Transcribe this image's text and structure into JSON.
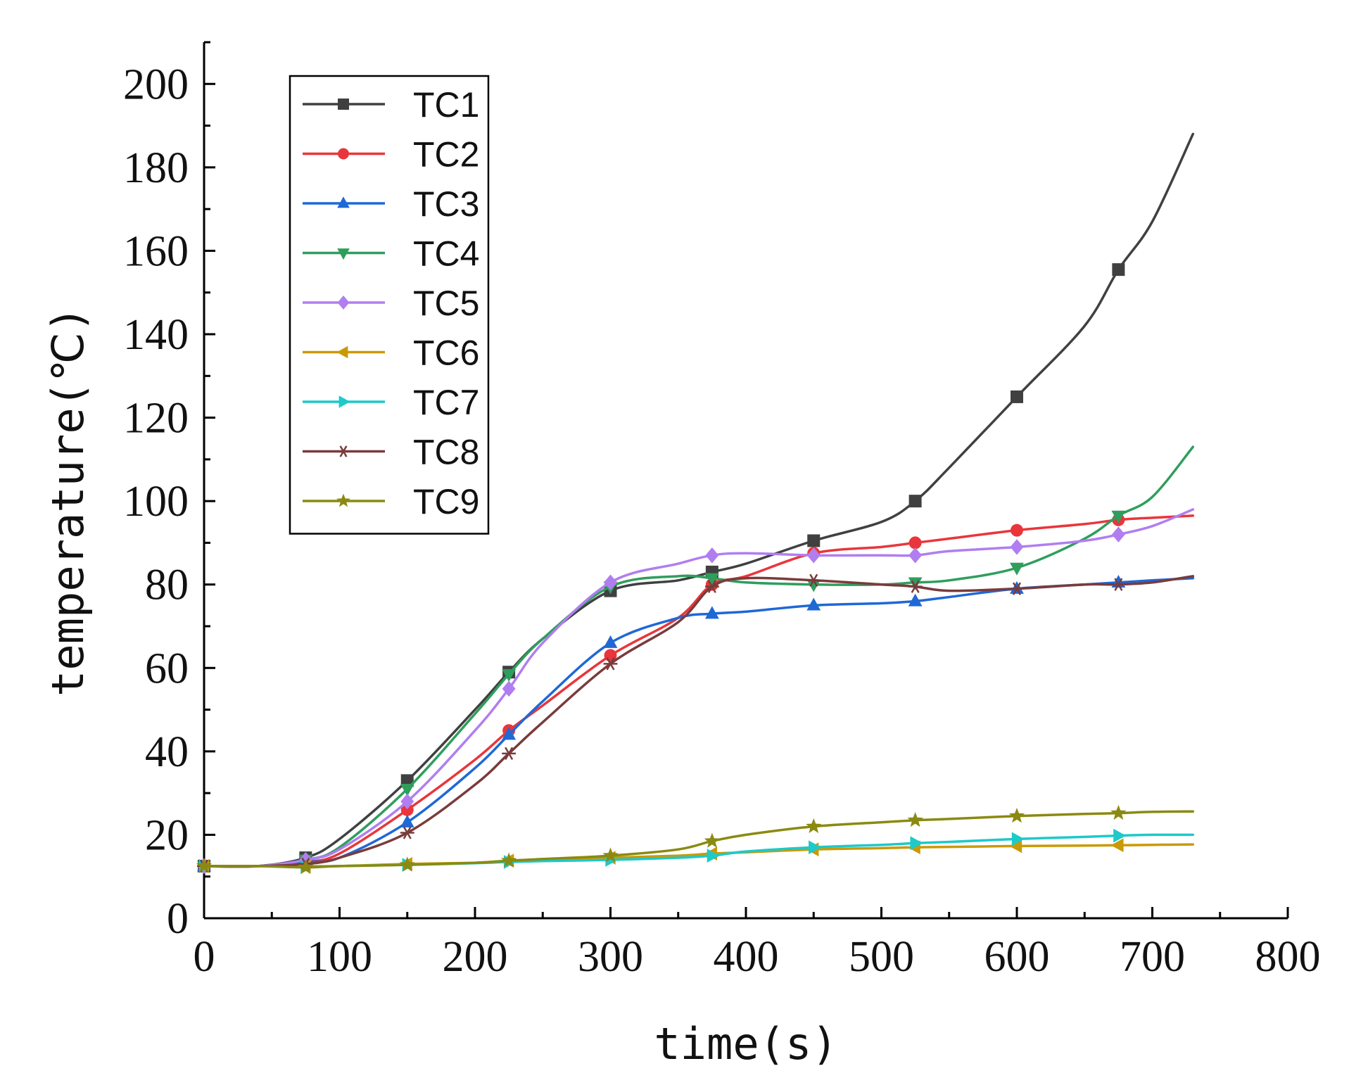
{
  "chart_data": {
    "type": "line",
    "title": "",
    "xlabel": "time(s)",
    "ylabel": "temperature(℃)",
    "xlim": [
      0,
      800
    ],
    "ylim": [
      0,
      210
    ],
    "xticks": [
      0,
      100,
      200,
      300,
      400,
      500,
      600,
      700,
      800
    ],
    "yticks": [
      0,
      20,
      40,
      60,
      80,
      100,
      120,
      140,
      160,
      180,
      200
    ],
    "grid": false,
    "legend_position": "top-left",
    "series": [
      {
        "name": "TC1",
        "color": "#404040",
        "marker": "square",
        "x": [
          0,
          40,
          75,
          100,
          150,
          200,
          225,
          250,
          300,
          350,
          375,
          400,
          450,
          500,
          525,
          550,
          600,
          650,
          675,
          700,
          730
        ],
        "y": [
          12.5,
          12.5,
          14.5,
          19,
          33,
          50,
          59,
          67,
          78.5,
          81,
          83,
          85,
          90.5,
          95,
          100,
          108,
          125,
          142,
          155.5,
          167,
          188
        ]
      },
      {
        "name": "TC2",
        "color": "#e8363b",
        "marker": "circle",
        "x": [
          0,
          40,
          75,
          100,
          150,
          200,
          225,
          250,
          300,
          350,
          375,
          400,
          450,
          500,
          525,
          550,
          600,
          650,
          675,
          700,
          730
        ],
        "y": [
          12.5,
          12.5,
          13.5,
          15.5,
          26,
          38,
          45,
          51,
          63,
          72,
          80,
          82,
          87.5,
          89,
          90,
          91,
          93,
          94.5,
          95.5,
          96,
          96.5
        ]
      },
      {
        "name": "TC3",
        "color": "#1f68d6",
        "marker": "triangle-up",
        "x": [
          0,
          40,
          75,
          100,
          150,
          200,
          225,
          250,
          300,
          350,
          375,
          400,
          450,
          500,
          525,
          550,
          600,
          650,
          675,
          700,
          730
        ],
        "y": [
          12.5,
          12.5,
          13.5,
          14.5,
          23,
          36,
          44,
          52,
          66,
          72,
          73,
          73.5,
          75,
          75.5,
          76,
          77,
          79,
          80,
          80.5,
          81,
          81.5
        ]
      },
      {
        "name": "TC4",
        "color": "#2e9e5c",
        "marker": "triangle-down",
        "x": [
          0,
          40,
          75,
          100,
          150,
          200,
          225,
          250,
          300,
          350,
          375,
          400,
          450,
          500,
          525,
          550,
          600,
          650,
          675,
          700,
          730
        ],
        "y": [
          12.5,
          12.5,
          14,
          17,
          31,
          49,
          58.5,
          67,
          79.5,
          82,
          81.5,
          80.5,
          80,
          80,
          80.5,
          81,
          84,
          91,
          96.5,
          101,
          113
        ]
      },
      {
        "name": "TC5",
        "color": "#b07ef0",
        "marker": "diamond",
        "x": [
          0,
          40,
          75,
          100,
          150,
          200,
          225,
          250,
          300,
          350,
          375,
          400,
          450,
          500,
          525,
          550,
          600,
          650,
          675,
          700,
          730
        ],
        "y": [
          12.5,
          12.5,
          14,
          16.5,
          28,
          45,
          55,
          66,
          80.5,
          85,
          87,
          87.5,
          87,
          87,
          87,
          88,
          89,
          90.5,
          92,
          94,
          98
        ]
      },
      {
        "name": "TC6",
        "color": "#c99a06",
        "marker": "triangle-left",
        "x": [
          0,
          40,
          75,
          100,
          150,
          200,
          225,
          250,
          300,
          350,
          375,
          400,
          450,
          500,
          525,
          550,
          600,
          650,
          675,
          700,
          730
        ],
        "y": [
          12.5,
          12.5,
          12.5,
          12.5,
          13,
          13.3,
          13.8,
          14,
          14.5,
          15,
          15.5,
          15.8,
          16.5,
          16.8,
          17,
          17.1,
          17.3,
          17.4,
          17.5,
          17.6,
          17.7
        ]
      },
      {
        "name": "TC7",
        "color": "#1ec9c9",
        "marker": "triangle-right",
        "x": [
          0,
          40,
          75,
          100,
          150,
          200,
          225,
          250,
          300,
          350,
          375,
          400,
          450,
          500,
          525,
          550,
          600,
          650,
          675,
          700,
          730
        ],
        "y": [
          12.5,
          12.5,
          12.3,
          12.5,
          12.8,
          13.2,
          13.5,
          13.7,
          14,
          14.5,
          15,
          16,
          17,
          17.6,
          18,
          18.3,
          19,
          19.5,
          19.8,
          20,
          20
        ]
      },
      {
        "name": "TC8",
        "color": "#7a3b3b",
        "marker": "asterisk",
        "x": [
          0,
          40,
          75,
          100,
          150,
          200,
          225,
          250,
          300,
          350,
          375,
          400,
          450,
          500,
          525,
          550,
          600,
          650,
          675,
          700,
          730
        ],
        "y": [
          12.5,
          12.5,
          13,
          14.5,
          20.5,
          32,
          39.5,
          47,
          61,
          71,
          79.5,
          81.5,
          81,
          80,
          79.5,
          78.5,
          79,
          80,
          80,
          80.5,
          82
        ]
      },
      {
        "name": "TC9",
        "color": "#8a8a12",
        "marker": "star",
        "x": [
          0,
          40,
          75,
          100,
          150,
          200,
          225,
          250,
          300,
          350,
          375,
          400,
          450,
          500,
          525,
          550,
          600,
          650,
          675,
          700,
          730
        ],
        "y": [
          12.5,
          12.5,
          12.2,
          12.5,
          12.8,
          13.3,
          13.8,
          14.2,
          15,
          16.5,
          18.5,
          20,
          22,
          23,
          23.5,
          23.8,
          24.5,
          25,
          25.2,
          25.5,
          25.6
        ]
      }
    ]
  }
}
